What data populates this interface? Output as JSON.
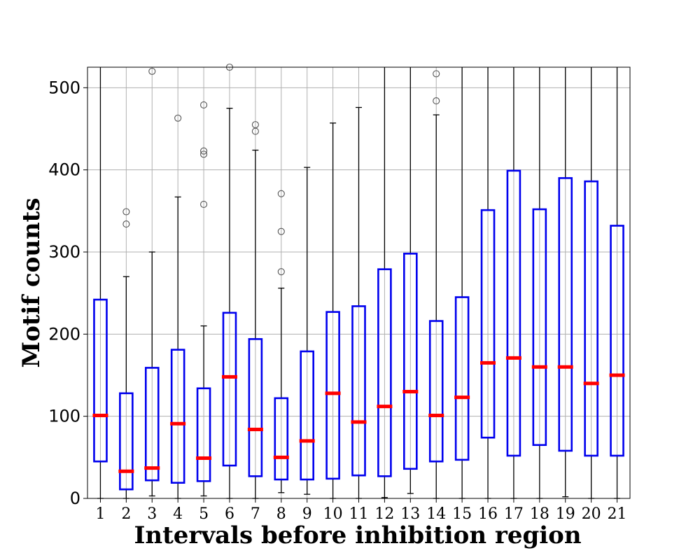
{
  "chart_data": {
    "type": "box",
    "title": "",
    "xlabel": "Intervals before inhibition region",
    "ylabel": "Motif counts",
    "ylim": [
      0,
      525
    ],
    "yticks": [
      0,
      100,
      200,
      300,
      400,
      500
    ],
    "grid": true,
    "categories": [
      "1",
      "2",
      "3",
      "4",
      "5",
      "6",
      "7",
      "8",
      "9",
      "10",
      "11",
      "12",
      "13",
      "14",
      "15",
      "16",
      "17",
      "18",
      "19",
      "20",
      "21"
    ],
    "boxes": [
      {
        "whisker_low": 0,
        "q1": 45,
        "median": 101,
        "q3": 242,
        "whisker_high": 525,
        "outliers": []
      },
      {
        "whisker_low": 0,
        "q1": 11,
        "median": 33,
        "q3": 128,
        "whisker_high": 270,
        "outliers": [
          334,
          349
        ]
      },
      {
        "whisker_low": 3,
        "q1": 22,
        "median": 37,
        "q3": 159,
        "whisker_high": 300,
        "outliers": [
          520
        ]
      },
      {
        "whisker_low": 0,
        "q1": 19,
        "median": 91,
        "q3": 181,
        "whisker_high": 367,
        "outliers": [
          463
        ]
      },
      {
        "whisker_low": 3,
        "q1": 21,
        "median": 49,
        "q3": 134,
        "whisker_high": 210,
        "outliers": [
          358,
          419,
          423,
          479
        ]
      },
      {
        "whisker_low": 0,
        "q1": 40,
        "median": 148,
        "q3": 226,
        "whisker_high": 475,
        "outliers": [
          525
        ]
      },
      {
        "whisker_low": 0,
        "q1": 27,
        "median": 84,
        "q3": 194,
        "whisker_high": 424,
        "outliers": [
          447,
          455
        ]
      },
      {
        "whisker_low": 7,
        "q1": 23,
        "median": 50,
        "q3": 122,
        "whisker_high": 256,
        "outliers": [
          276,
          325,
          371
        ]
      },
      {
        "whisker_low": 5,
        "q1": 23,
        "median": 70,
        "q3": 179,
        "whisker_high": 403,
        "outliers": []
      },
      {
        "whisker_low": 0,
        "q1": 24,
        "median": 128,
        "q3": 227,
        "whisker_high": 457,
        "outliers": []
      },
      {
        "whisker_low": 0,
        "q1": 28,
        "median": 93,
        "q3": 234,
        "whisker_high": 476,
        "outliers": []
      },
      {
        "whisker_low": 1,
        "q1": 27,
        "median": 112,
        "q3": 279,
        "whisker_high": 525,
        "outliers": []
      },
      {
        "whisker_low": 6,
        "q1": 36,
        "median": 130,
        "q3": 298,
        "whisker_high": 525,
        "outliers": []
      },
      {
        "whisker_low": 0,
        "q1": 45,
        "median": 101,
        "q3": 216,
        "whisker_high": 467,
        "outliers": [
          484,
          517
        ]
      },
      {
        "whisker_low": 0,
        "q1": 47,
        "median": 123,
        "q3": 245,
        "whisker_high": 525,
        "outliers": []
      },
      {
        "whisker_low": 0,
        "q1": 74,
        "median": 165,
        "q3": 351,
        "whisker_high": 525,
        "outliers": []
      },
      {
        "whisker_low": 0,
        "q1": 52,
        "median": 171,
        "q3": 399,
        "whisker_high": 525,
        "outliers": []
      },
      {
        "whisker_low": 0,
        "q1": 65,
        "median": 160,
        "q3": 352,
        "whisker_high": 525,
        "outliers": []
      },
      {
        "whisker_low": 2,
        "q1": 58,
        "median": 160,
        "q3": 390,
        "whisker_high": 525,
        "outliers": []
      },
      {
        "whisker_low": 0,
        "q1": 52,
        "median": 140,
        "q3": 386,
        "whisker_high": 525,
        "outliers": []
      },
      {
        "whisker_low": 0,
        "q1": 52,
        "median": 150,
        "q3": 332,
        "whisker_high": 525,
        "outliers": []
      }
    ],
    "colors": {
      "box": "#0000ee",
      "median": "#ff0000",
      "whisker": "#000000",
      "outlier": "#555555",
      "grid": "#b0b0b0"
    }
  }
}
